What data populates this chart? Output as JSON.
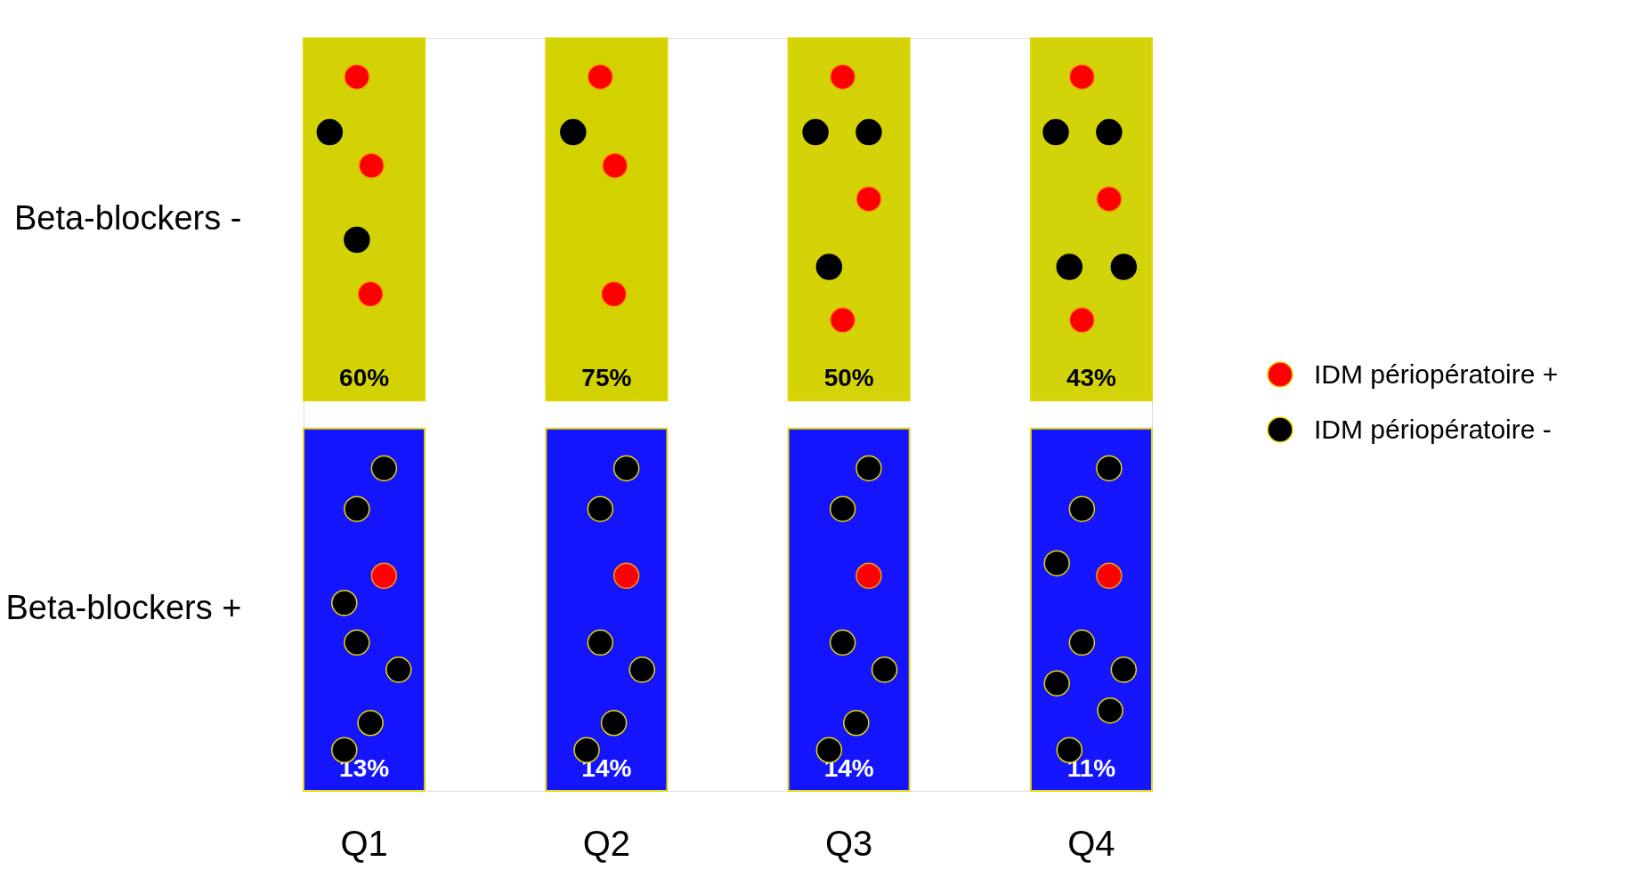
{
  "chart_data": {
    "type": "heatmap",
    "categories": [
      "Q1",
      "Q2",
      "Q3",
      "Q4"
    ],
    "y_categories": [
      "Beta-blockers -",
      "Beta-blockers +"
    ],
    "cells": [
      [
        60,
        75,
        50,
        43
      ],
      [
        13,
        14,
        14,
        11
      ]
    ],
    "cell_labels": [
      [
        "60%",
        "75%",
        "50%",
        "43%"
      ],
      [
        "13%",
        "14%",
        "14%",
        "11%"
      ]
    ],
    "annotations": [
      "IDM périopératoire +",
      "IDM périopératoire -"
    ]
  }
}
